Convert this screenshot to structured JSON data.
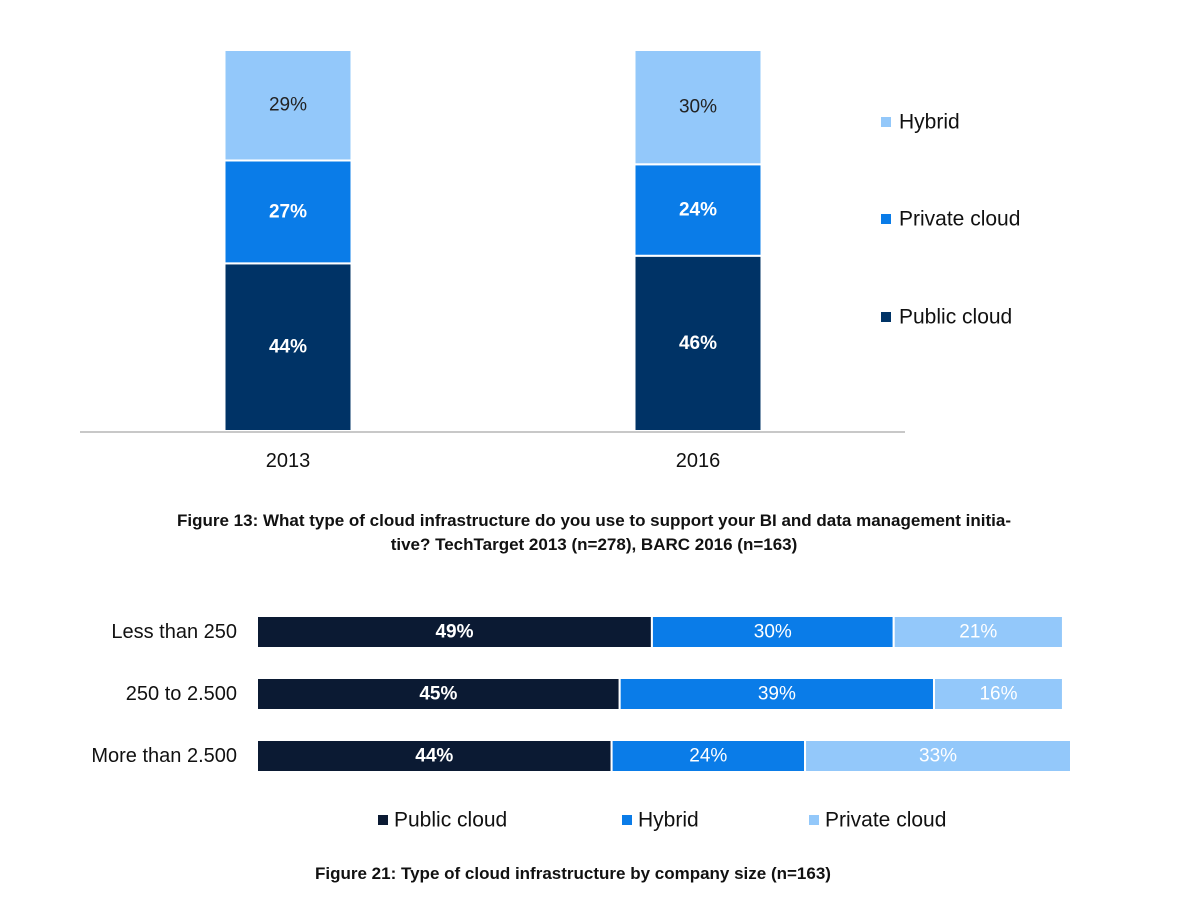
{
  "chart_data": [
    {
      "type": "bar",
      "orientation": "vertical",
      "stacked": true,
      "categories": [
        "2013",
        "2016"
      ],
      "series": [
        {
          "name": "Public cloud",
          "values": [
            44,
            46
          ],
          "labels": [
            "44%",
            "46%"
          ],
          "color": "#003366"
        },
        {
          "name": "Private cloud",
          "values": [
            27,
            24
          ],
          "labels": [
            "27%",
            "24%"
          ],
          "color": "#0a7ce8"
        },
        {
          "name": "Hybrid",
          "values": [
            29,
            30
          ],
          "labels": [
            "29%",
            "30%"
          ],
          "color": "#93c8fa"
        }
      ],
      "legend": [
        "Hybrid",
        "Private cloud",
        "Public cloud"
      ],
      "legend_position": "right",
      "ylim": [
        0,
        100
      ],
      "title": "Figure 13: What type of cloud infrastructure do you use to support your BI and data management initia-\ntive? TechTarget 2013 (n=278), BARC 2016 (n=163)",
      "caption_lines": [
        "Figure 13: What type of cloud infrastructure do you use to support your BI and data management initia-",
        "tive? TechTarget 2013 (n=278), BARC 2016 (n=163)"
      ]
    },
    {
      "type": "bar",
      "orientation": "horizontal",
      "stacked": true,
      "categories": [
        "Less than 250",
        "250 to 2.500",
        "More than 2.500"
      ],
      "series": [
        {
          "name": "Public cloud",
          "values": [
            49,
            45,
            44
          ],
          "labels": [
            "49%",
            "45%",
            "44%"
          ],
          "color": "#0b1a33"
        },
        {
          "name": "Hybrid",
          "values": [
            30,
            39,
            24
          ],
          "labels": [
            "30%",
            "39%",
            "24%"
          ],
          "color": "#0a7ce8"
        },
        {
          "name": "Private cloud",
          "values": [
            21,
            16,
            33
          ],
          "labels": [
            "21%",
            "16%",
            "33%"
          ],
          "color": "#93c8fa"
        }
      ],
      "legend": [
        "Public cloud",
        "Hybrid",
        "Private cloud"
      ],
      "legend_position": "bottom",
      "xlim": [
        0,
        101
      ],
      "title": "Figure 21: Type of cloud infrastructure by company size (n=163)",
      "caption_lines": [
        "Figure 21: Type of cloud infrastructure by company size (n=163)"
      ]
    }
  ]
}
